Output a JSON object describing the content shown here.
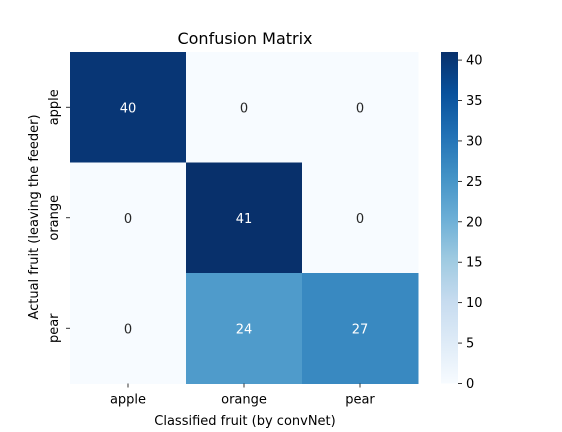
{
  "chart_data": {
    "type": "heatmap",
    "title": "Confusion Matrix",
    "xlabel": "Classified fruit (by convNet)",
    "ylabel": "Actual fruit (leaving the feeder)",
    "x_categories": [
      "apple",
      "orange",
      "pear"
    ],
    "y_categories": [
      "apple",
      "orange",
      "pear"
    ],
    "values": [
      [
        40,
        0,
        0
      ],
      [
        0,
        41,
        0
      ],
      [
        0,
        24,
        27
      ]
    ],
    "colormap": "Blues",
    "vmin": 0,
    "vmax": 41,
    "colorbar_ticks": [
      0,
      5,
      10,
      15,
      20,
      25,
      30,
      35,
      40
    ],
    "colors": {
      "cmap_stops": [
        "#f7fbff",
        "#deebf7",
        "#c6dbef",
        "#9ecae1",
        "#6baed6",
        "#4292c6",
        "#2171b5",
        "#08519c",
        "#08306b"
      ],
      "annotation_light": "#ffffff",
      "annotation_dark": "#262626"
    }
  }
}
